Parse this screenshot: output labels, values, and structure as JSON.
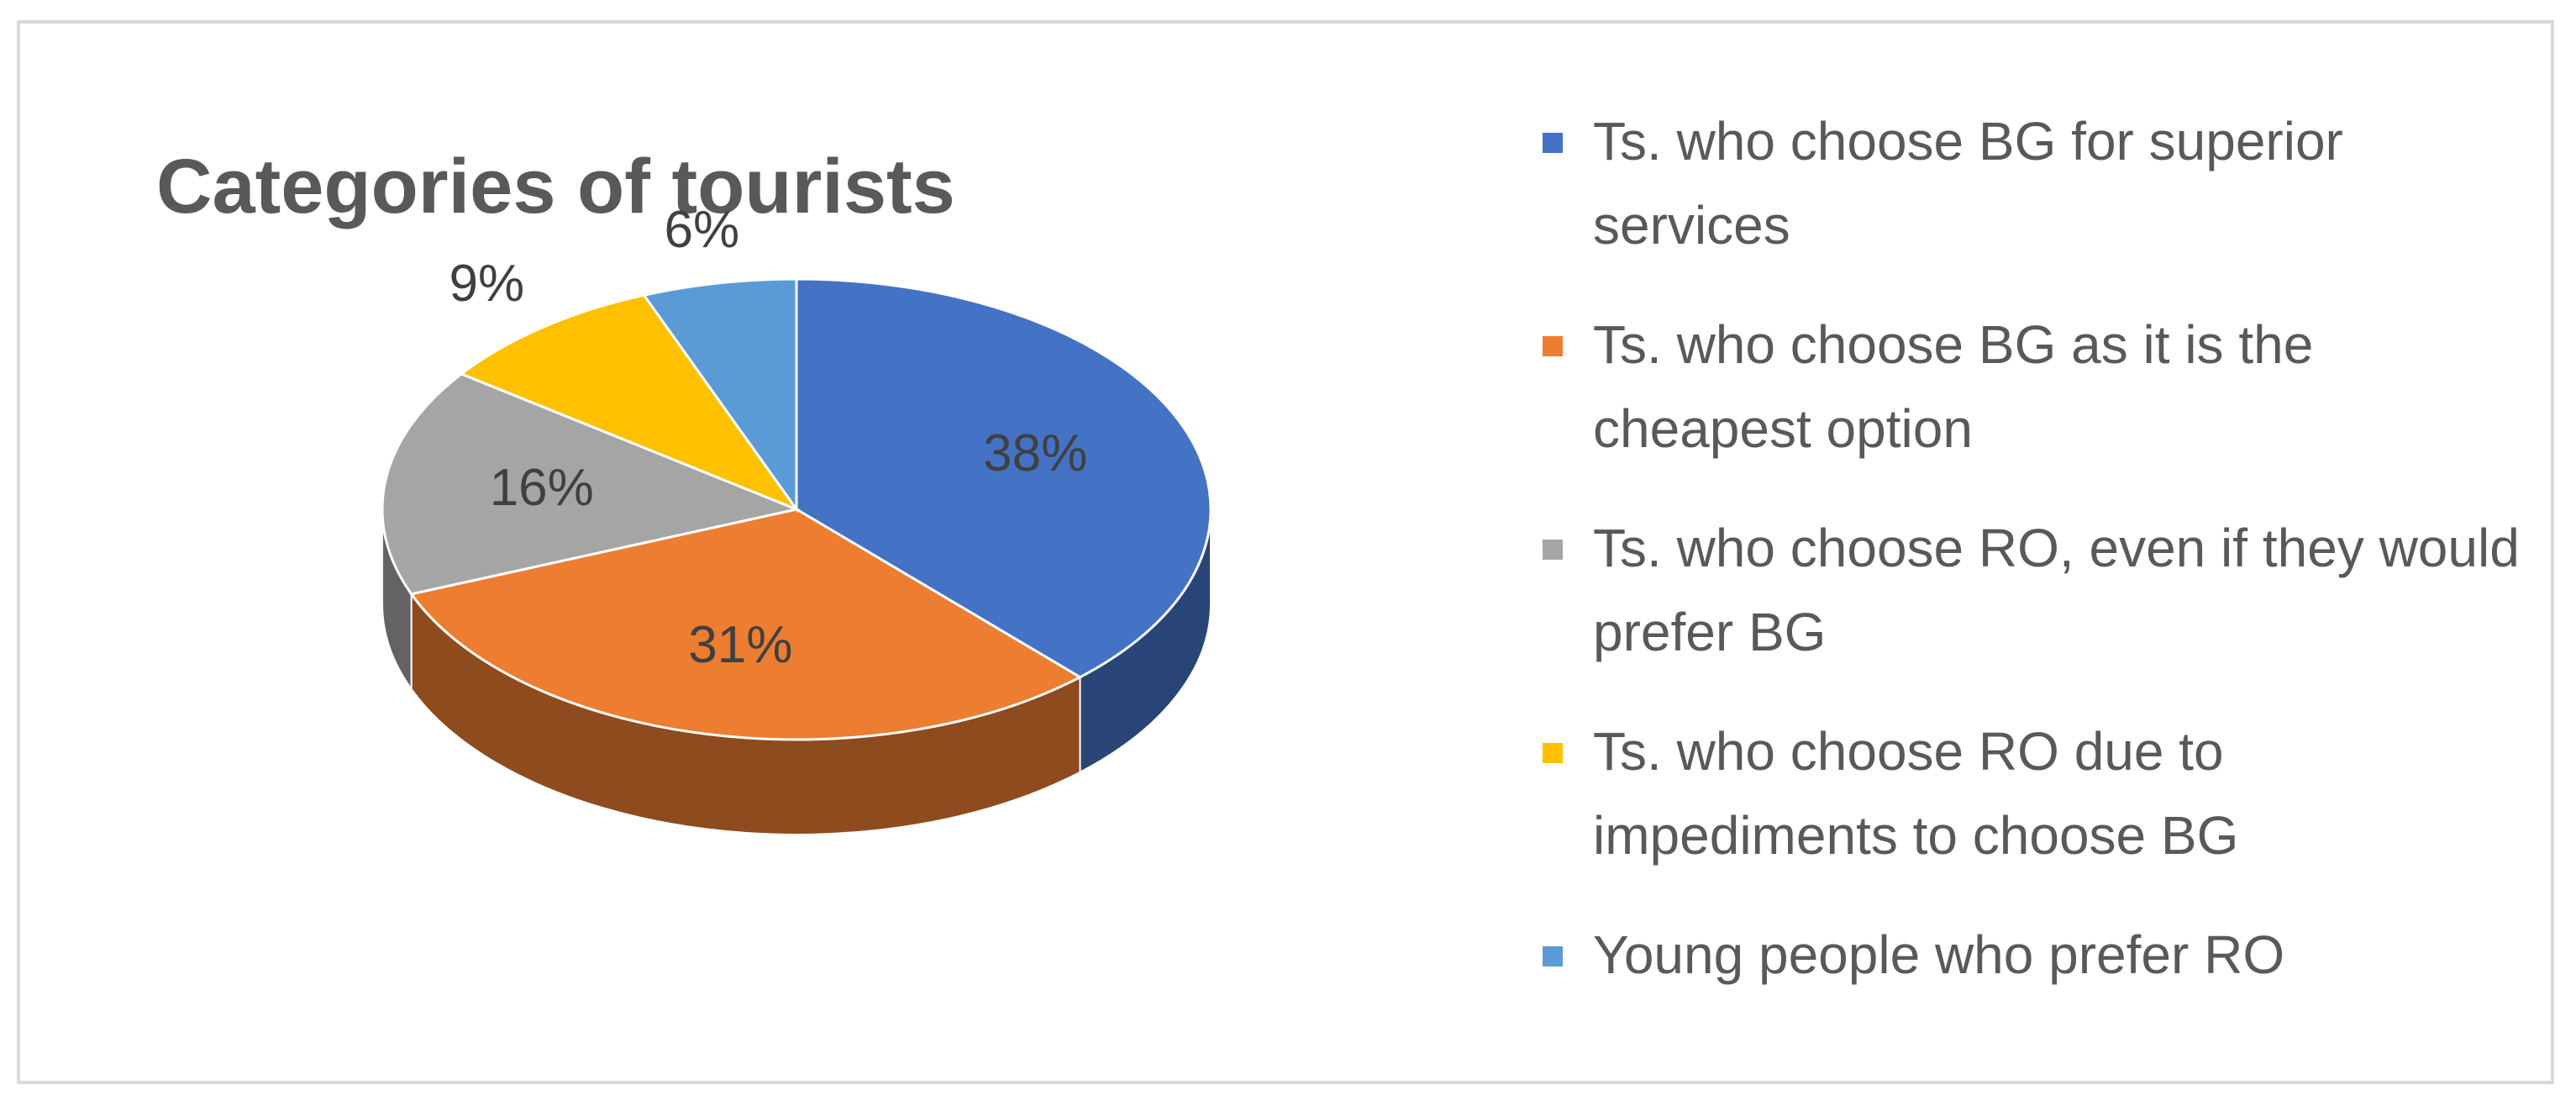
{
  "chart_data": {
    "type": "pie",
    "title": "Categories of tourists",
    "categories": [
      "Ts. who choose BG for superior services",
      "Ts. who choose BG as it is the cheapest option",
      "Ts. who choose RO, even if they would prefer BG",
      "Ts. who choose RO due to impediments to choose BG",
      "Young people who prefer RO"
    ],
    "values": [
      38,
      31,
      16,
      9,
      6
    ],
    "value_labels": [
      "38%",
      "31%",
      "16%",
      "9%",
      "6%"
    ],
    "colors": [
      "#4472c4",
      "#ed7d31",
      "#a5a5a5",
      "#ffc000",
      "#5b9bd5"
    ]
  }
}
